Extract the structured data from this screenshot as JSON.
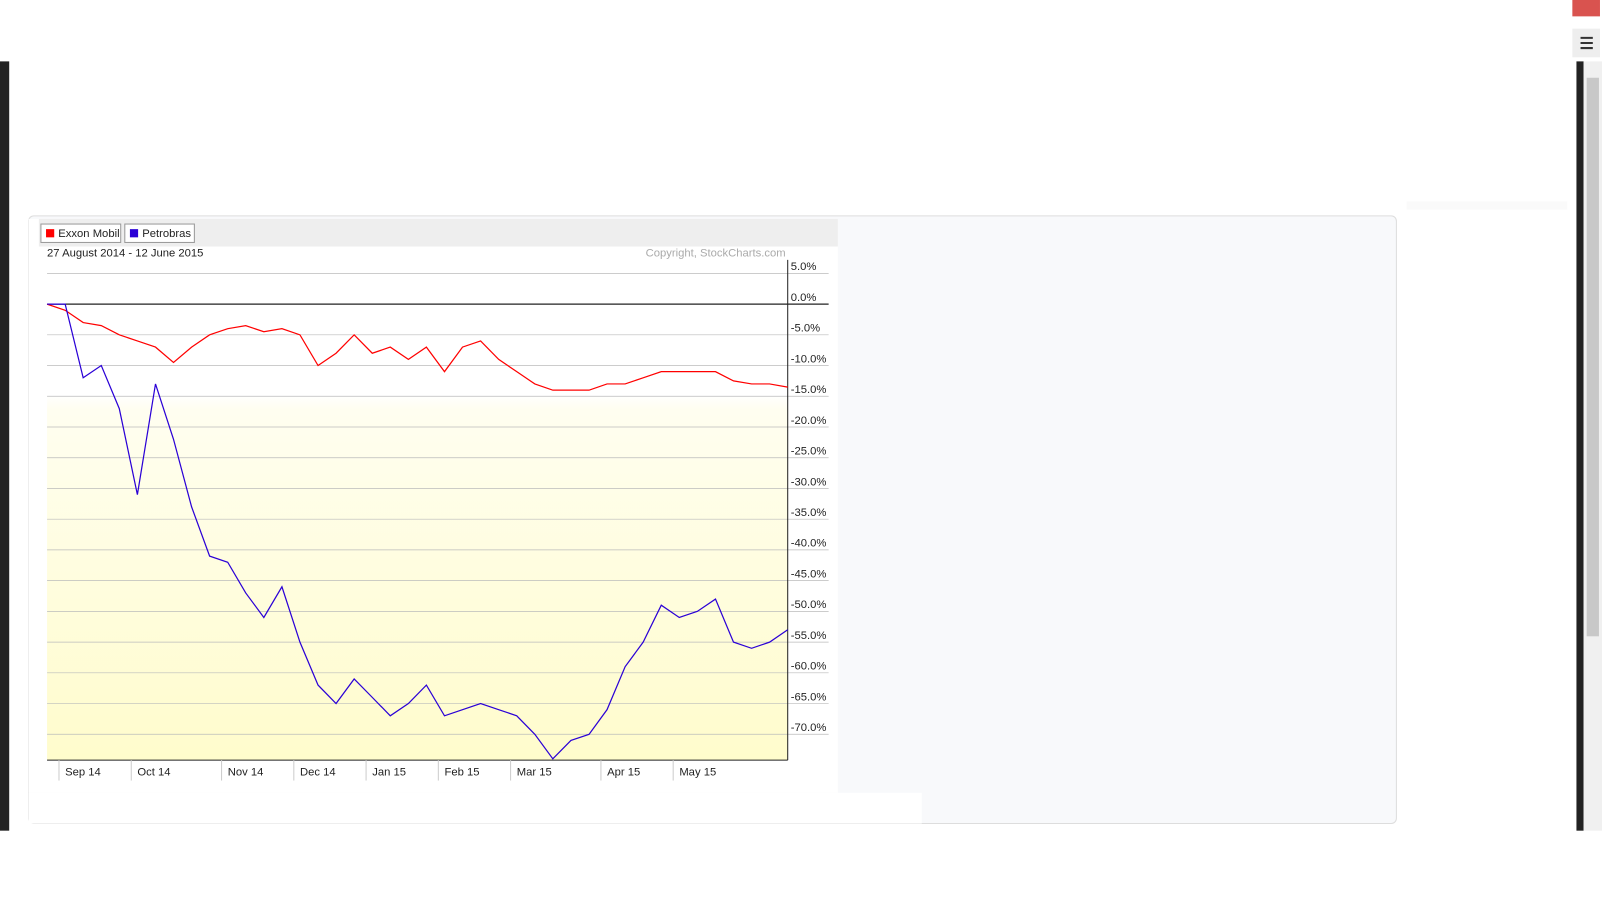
{
  "chart_data": {
    "type": "line",
    "subtitle": "27 August 2014 - 12 June 2015",
    "credit": "Copyright, StockCharts.com",
    "categories": [
      null,
      "Sep 14",
      null,
      null,
      null,
      "Oct 14",
      null,
      null,
      null,
      null,
      "Nov 14",
      null,
      null,
      null,
      "Dec 14",
      null,
      null,
      null,
      "Jan 15",
      null,
      null,
      null,
      "Feb 15",
      null,
      null,
      null,
      "Mar 15",
      null,
      null,
      null,
      null,
      "Apr 15",
      null,
      null,
      null,
      "May 15",
      null,
      null,
      null,
      null,
      null,
      null
    ],
    "series": [
      {
        "name": "Exxon Mobil",
        "color": "#ff0000",
        "values": [
          0,
          -1,
          -3,
          -3.5,
          -5,
          -6,
          -7,
          -9.5,
          -7,
          -5,
          -4,
          -3.5,
          -4.5,
          -4,
          -5,
          -10,
          -8,
          -5,
          -8,
          -7,
          -9,
          -7,
          -11,
          -7,
          -6,
          -9,
          -11,
          -13,
          -14,
          -14,
          -14,
          -13,
          -13,
          -12,
          -11,
          -11,
          -11,
          -11,
          -12.5,
          -13,
          -13,
          -13.5
        ]
      },
      {
        "name": "Petrobras",
        "color": "#2a00d6",
        "values": [
          0,
          0,
          -12,
          -10,
          -17,
          -31,
          -13,
          -22,
          -33,
          -41,
          -42,
          -47,
          -51,
          -46,
          -55,
          -62,
          -65,
          -61,
          -64,
          -67,
          -65,
          -62,
          -67,
          -66,
          -65,
          -66,
          -67,
          -70,
          -74,
          -71,
          -70,
          -66,
          -59,
          -55,
          -49,
          -51,
          -50,
          -48,
          -55,
          -56,
          -55,
          -53
        ]
      }
    ],
    "ylim": [
      -74.2,
      7.2
    ],
    "yticks": [
      {
        "value": 5,
        "label": "5.0%"
      },
      {
        "value": 0,
        "label": "0.0%"
      },
      {
        "value": -5,
        "label": "-5.0%"
      },
      {
        "value": -10,
        "label": "-10.0%"
      },
      {
        "value": -15,
        "label": "-15.0%"
      },
      {
        "value": -20,
        "label": "-20.0%"
      },
      {
        "value": -25,
        "label": "-25.0%"
      },
      {
        "value": -30,
        "label": "-30.0%"
      },
      {
        "value": -35,
        "label": "-35.0%"
      },
      {
        "value": -40,
        "label": "-40.0%"
      },
      {
        "value": -45,
        "label": "-45.0%"
      },
      {
        "value": -50,
        "label": "-50.0%"
      },
      {
        "value": -55,
        "label": "-55.0%"
      },
      {
        "value": -60,
        "label": "-60.0%"
      },
      {
        "value": -65,
        "label": "-65.0%"
      },
      {
        "value": -70,
        "label": "-70.0%"
      }
    ],
    "grid": true,
    "legend": "top-left"
  }
}
